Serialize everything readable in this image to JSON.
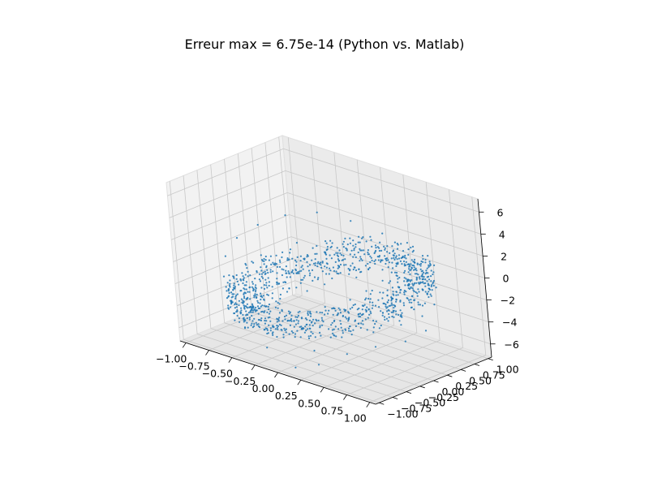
{
  "chart_data": {
    "type": "scatter",
    "projection": "3d",
    "title": "Erreur max = 6.75e-14 (Python vs. Matlab)",
    "xlabel": "",
    "ylabel": "",
    "zlabel": "",
    "xlim": [
      -1,
      1
    ],
    "ylim": [
      -1,
      1
    ],
    "zlim": [
      -7.2,
      7.2
    ],
    "grid": true,
    "marker_color": "#1f77b4",
    "x_ticks": [
      "−1.00",
      "−0.75",
      "−0.50",
      "−0.25",
      "0.00",
      "0.25",
      "0.50",
      "0.75",
      "1.00"
    ],
    "y_ticks": [
      "−1.00",
      "−0.75",
      "−0.50",
      "−0.25",
      "0.00",
      "0.25",
      "0.50",
      "0.75",
      "1.00"
    ],
    "z_ticks": [
      "−6",
      "−4",
      "−2",
      "0",
      "2",
      "4",
      "6"
    ],
    "points_note_values": {
      "points": [
        [
          0.95,
          0.31,
          -1.2
        ],
        [
          0.81,
          0.59,
          -0.6
        ],
        [
          0.59,
          0.81,
          0.1
        ],
        [
          0.31,
          0.95,
          0.8
        ],
        [
          0.0,
          1.0,
          1.3
        ],
        [
          -0.31,
          0.95,
          1.7
        ],
        [
          -0.59,
          0.81,
          2.0
        ],
        [
          -0.81,
          0.59,
          1.6
        ],
        [
          -0.95,
          0.31,
          0.9
        ],
        [
          -1.0,
          0.0,
          0.2
        ],
        [
          -0.95,
          -0.31,
          -0.7
        ],
        [
          -0.81,
          -0.59,
          -1.6
        ],
        [
          -0.59,
          -0.81,
          -2.4
        ],
        [
          -0.31,
          -0.95,
          -3.1
        ],
        [
          0.0,
          -1.0,
          -3.4
        ],
        [
          0.31,
          -0.95,
          -3.3
        ],
        [
          0.59,
          -0.81,
          -2.9
        ],
        [
          0.81,
          -0.59,
          -2.3
        ],
        [
          0.95,
          -0.31,
          -1.8
        ],
        [
          1.0,
          0.0,
          -1.5
        ],
        [
          0.9,
          0.2,
          -3.5
        ],
        [
          0.85,
          -0.1,
          -4.0
        ],
        [
          0.7,
          -0.4,
          -4.3
        ],
        [
          0.5,
          -0.6,
          -5.1
        ],
        [
          0.2,
          -0.7,
          -5.4
        ],
        [
          -0.1,
          -0.75,
          -4.9
        ],
        [
          -0.4,
          -0.7,
          -4.6
        ],
        [
          -0.6,
          -0.5,
          -4.0
        ],
        [
          -0.75,
          -0.2,
          -3.2
        ],
        [
          -0.8,
          0.1,
          -2.6
        ],
        [
          -0.7,
          0.4,
          -1.8
        ],
        [
          -0.5,
          0.6,
          -1.1
        ],
        [
          -0.2,
          0.75,
          -0.3
        ],
        [
          0.1,
          0.8,
          0.4
        ],
        [
          0.4,
          0.7,
          0.9
        ],
        [
          0.65,
          0.5,
          1.4
        ],
        [
          0.8,
          0.25,
          1.9
        ],
        [
          0.5,
          0.2,
          -2.0
        ],
        [
          0.3,
          -0.2,
          -2.6
        ],
        [
          0.0,
          -0.4,
          -3.0
        ],
        [
          -0.3,
          -0.3,
          -2.2
        ],
        [
          -0.4,
          0.0,
          -1.4
        ],
        [
          -0.2,
          0.3,
          -0.6
        ],
        [
          0.1,
          0.4,
          0.3
        ],
        [
          0.4,
          0.3,
          -0.5
        ],
        [
          0.6,
          0.0,
          -1.7
        ],
        [
          0.7,
          -0.3,
          -2.8
        ],
        [
          0.3,
          -0.8,
          -6.2
        ],
        [
          0.1,
          -0.9,
          -6.8
        ],
        [
          -0.2,
          -0.9,
          -5.8
        ]
      ]
    }
  }
}
